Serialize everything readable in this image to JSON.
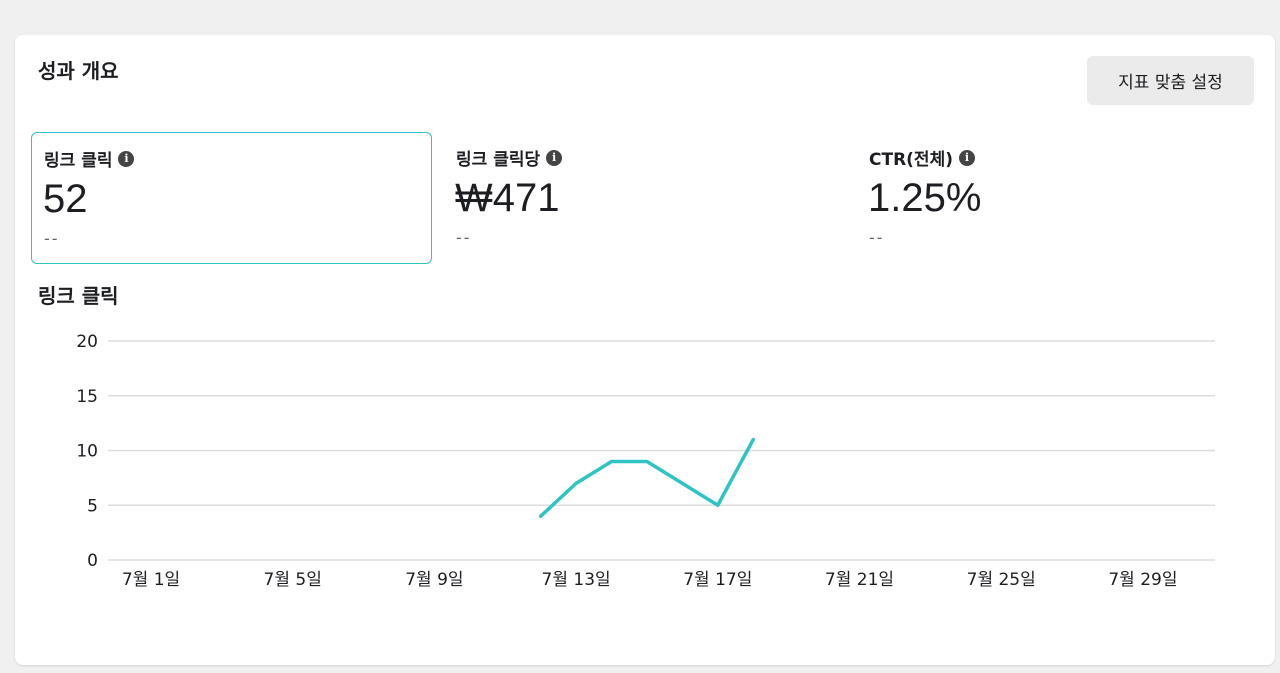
{
  "overview": {
    "title": "성과 개요",
    "customize_button": "지표 맞춤 설정"
  },
  "metrics": [
    {
      "label": "링크 클릭",
      "value": "52",
      "compare": "--",
      "selected": true
    },
    {
      "label": "링크 클릭당",
      "value": "₩471",
      "compare": "--",
      "selected": false
    },
    {
      "label": "CTR(전체)",
      "value": "1.25%",
      "compare": "--",
      "selected": false
    }
  ],
  "chart_section": {
    "title": "링크 클릭"
  },
  "colors": {
    "accent": "#2ec4c4",
    "gridline": "#dddddd",
    "button_bg": "#ebebeb"
  },
  "chart_data": {
    "type": "line",
    "title": "링크 클릭",
    "xlabel": "",
    "ylabel": "",
    "x_tick_labels": [
      "7월 1일",
      "7월 5일",
      "7월 9일",
      "7월 13일",
      "7월 17일",
      "7월 21일",
      "7월 25일",
      "7월 29일"
    ],
    "y_ticks": [
      0,
      5,
      10,
      15,
      20
    ],
    "ylim": [
      0,
      20
    ],
    "xlim_days": [
      1,
      31
    ],
    "series": [
      {
        "points": [
          {
            "x": "7월 12일",
            "day": 12,
            "y": 4
          },
          {
            "x": "7월 13일",
            "day": 13,
            "y": 7
          },
          {
            "x": "7월 14일",
            "day": 14,
            "y": 9
          },
          {
            "x": "7월 15일",
            "day": 15,
            "y": 9
          },
          {
            "x": "7월 17일",
            "day": 17,
            "y": 5
          },
          {
            "x": "7월 18일",
            "day": 18,
            "y": 11
          }
        ]
      }
    ],
    "grid": true,
    "legend": "none"
  }
}
